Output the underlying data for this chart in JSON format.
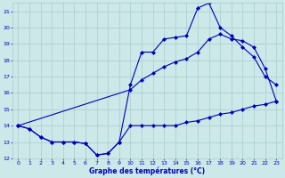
{
  "xlabel": "Graphe des températures (°C)",
  "xlim": [
    -0.5,
    23.5
  ],
  "ylim": [
    12,
    21.5
  ],
  "yticks": [
    12,
    13,
    14,
    15,
    16,
    17,
    18,
    19,
    20,
    21
  ],
  "xticks": [
    0,
    1,
    2,
    3,
    4,
    5,
    6,
    7,
    8,
    9,
    10,
    11,
    12,
    13,
    14,
    15,
    16,
    17,
    18,
    19,
    20,
    21,
    22,
    23
  ],
  "bg_color": "#cce8e8",
  "grid_color": "#aacccc",
  "line_color": "#0000bb",
  "marker": "D",
  "markersize": 2,
  "linewidth": 0.8,
  "series1": {
    "x": [
      0,
      1,
      2,
      3,
      4,
      5,
      6,
      7,
      8,
      9,
      10,
      11,
      12,
      13,
      14,
      15,
      16,
      17,
      18,
      19,
      20,
      21,
      22,
      23
    ],
    "y": [
      14.0,
      13.8,
      13.3,
      13.0,
      13.0,
      13.0,
      12.9,
      12.2,
      12.3,
      13.0,
      14.0,
      14.0,
      14.0,
      14.0,
      14.0,
      14.2,
      14.3,
      14.5,
      14.7,
      14.8,
      15.0,
      15.2,
      15.3,
      15.5
    ]
  },
  "series2": {
    "x": [
      0,
      1,
      2,
      3,
      4,
      5,
      6,
      7,
      8,
      9,
      10,
      11,
      12,
      13,
      14,
      15,
      16,
      17,
      18,
      19,
      20,
      21,
      22,
      23
    ],
    "y": [
      14.0,
      13.8,
      13.3,
      13.0,
      13.0,
      13.0,
      12.9,
      12.2,
      12.3,
      13.0,
      16.5,
      18.5,
      18.5,
      19.3,
      19.4,
      19.5,
      21.2,
      21.5,
      20.0,
      19.5,
      18.8,
      18.2,
      17.0,
      16.5
    ]
  },
  "series3": {
    "x": [
      0,
      10,
      11,
      12,
      13,
      14,
      15,
      16,
      17,
      18,
      19,
      20,
      21,
      22,
      23
    ],
    "y": [
      14.0,
      16.2,
      16.8,
      17.2,
      17.6,
      17.9,
      18.1,
      18.5,
      19.3,
      19.6,
      19.3,
      19.2,
      18.8,
      17.5,
      15.5
    ]
  }
}
